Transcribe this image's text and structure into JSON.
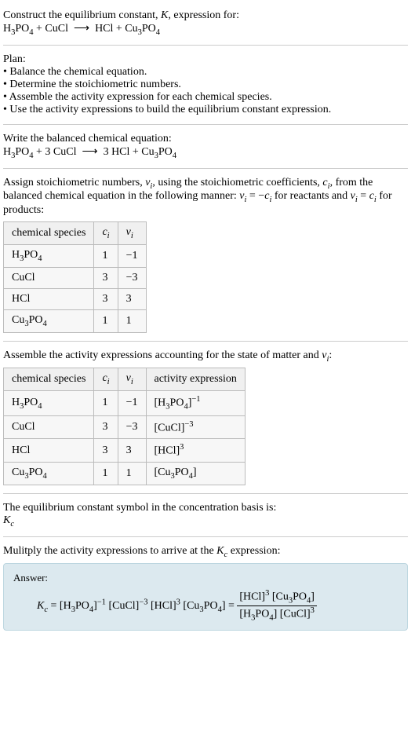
{
  "header": {
    "line1": "Construct the equilibrium constant, <i>K</i>, expression for:",
    "equation": "H<sub>3</sub>PO<sub>4</sub> + CuCl&nbsp; ⟶ &nbsp;HCl + Cu<sub>3</sub>PO<sub>4</sub>"
  },
  "plan": {
    "title": "Plan:",
    "items": [
      "• Balance the chemical equation.",
      "• Determine the stoichiometric numbers.",
      "• Assemble the activity expression for each chemical species.",
      "• Use the activity expressions to build the equilibrium constant expression."
    ]
  },
  "balanced": {
    "title": "Write the balanced chemical equation:",
    "equation": "H<sub>3</sub>PO<sub>4</sub> + 3 CuCl&nbsp; ⟶ &nbsp;3 HCl + Cu<sub>3</sub>PO<sub>4</sub>"
  },
  "stoich": {
    "intro": "Assign stoichiometric numbers, <i>ν<sub>i</sub></i>, using the stoichiometric coefficients, <i>c<sub>i</sub></i>, from the balanced chemical equation in the following manner: <i>ν<sub>i</sub></i> = −<i>c<sub>i</sub></i> for reactants and <i>ν<sub>i</sub></i> = <i>c<sub>i</sub></i> for products:",
    "headers": [
      "chemical species",
      "<i>c<sub>i</sub></i>",
      "<i>ν<sub>i</sub></i>"
    ],
    "rows": [
      [
        "H<sub>3</sub>PO<sub>4</sub>",
        "1",
        "−1"
      ],
      [
        "CuCl",
        "3",
        "−3"
      ],
      [
        "HCl",
        "3",
        "3"
      ],
      [
        "Cu<sub>3</sub>PO<sub>4</sub>",
        "1",
        "1"
      ]
    ]
  },
  "activity": {
    "intro": "Assemble the activity expressions accounting for the state of matter and <i>ν<sub>i</sub></i>:",
    "headers": [
      "chemical species",
      "<i>c<sub>i</sub></i>",
      "<i>ν<sub>i</sub></i>",
      "activity expression"
    ],
    "rows": [
      [
        "H<sub>3</sub>PO<sub>4</sub>",
        "1",
        "−1",
        "[H<sub>3</sub>PO<sub>4</sub>]<sup>−1</sup>"
      ],
      [
        "CuCl",
        "3",
        "−3",
        "[CuCl]<sup>−3</sup>"
      ],
      [
        "HCl",
        "3",
        "3",
        "[HCl]<sup>3</sup>"
      ],
      [
        "Cu<sub>3</sub>PO<sub>4</sub>",
        "1",
        "1",
        "[Cu<sub>3</sub>PO<sub>4</sub>]"
      ]
    ]
  },
  "symbol": {
    "text": "The equilibrium constant symbol in the concentration basis is:",
    "value": "<i>K<sub>c</sub></i>"
  },
  "multiply": {
    "text": "Mulitply the activity expressions to arrive at the <i>K<sub>c</sub></i> expression:"
  },
  "answer": {
    "label": "Answer:",
    "lhs": "<i>K<sub>c</sub></i> = [H<sub>3</sub>PO<sub>4</sub>]<sup>−1</sup> [CuCl]<sup>−3</sup> [HCl]<sup>3</sup> [Cu<sub>3</sub>PO<sub>4</sub>] = ",
    "frac_num": "[HCl]<sup>3</sup> [Cu<sub>3</sub>PO<sub>4</sub>]",
    "frac_den": "[H<sub>3</sub>PO<sub>4</sub>] [CuCl]<sup>3</sup>"
  }
}
